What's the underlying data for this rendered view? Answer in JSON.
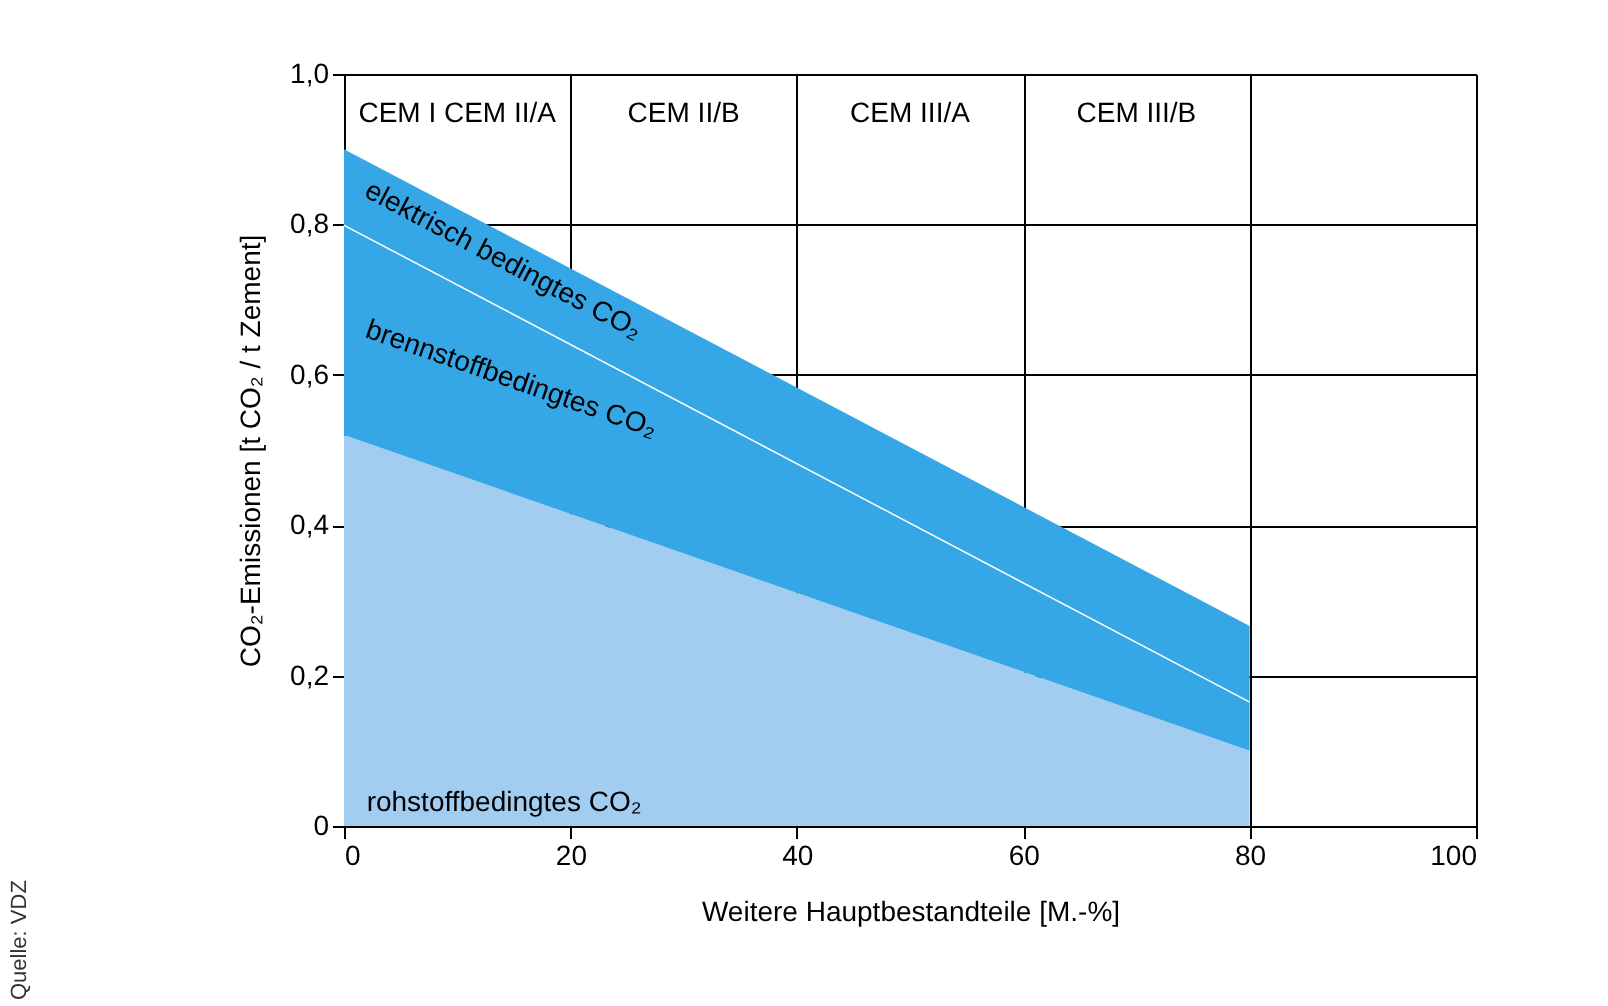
{
  "chart_data": {
    "type": "area",
    "stacked": true,
    "xlabel": "Weitere Hauptbestandteile [M.-%]",
    "ylabel": "CO₂-Emissionen [t CO₂ / t Zement]",
    "x": [
      0,
      80
    ],
    "series": [
      {
        "name": "rohstoffbedingtes CO₂",
        "color": "#a2cdf0",
        "values": [
          0.52,
          0.1
        ]
      },
      {
        "name": "brennstoffbedingtes CO₂",
        "color": "#35a7e6",
        "values": [
          0.28,
          0.066
        ]
      },
      {
        "name": "elektrisch bedingtes CO₂",
        "color": "#35a7e6",
        "values": [
          0.1,
          0.1
        ]
      }
    ],
    "xlim": [
      0,
      100
    ],
    "xticks": [
      0,
      20,
      40,
      60,
      80,
      100
    ],
    "ylim": [
      0,
      1.0
    ],
    "yticks": [
      {
        "value": 0,
        "label": "0"
      },
      {
        "value": 0.2,
        "label": "0,2"
      },
      {
        "value": 0.4,
        "label": "0,4"
      },
      {
        "value": 0.6,
        "label": "0,6"
      },
      {
        "value": 0.8,
        "label": "0,8"
      },
      {
        "value": 1.0,
        "label": "1,0"
      }
    ],
    "grid": true,
    "annotations": [
      "CEM I CEM II/A",
      "CEM II/B",
      "CEM III/A",
      "CEM III/B",
      "Quelle: VDZ"
    ]
  }
}
